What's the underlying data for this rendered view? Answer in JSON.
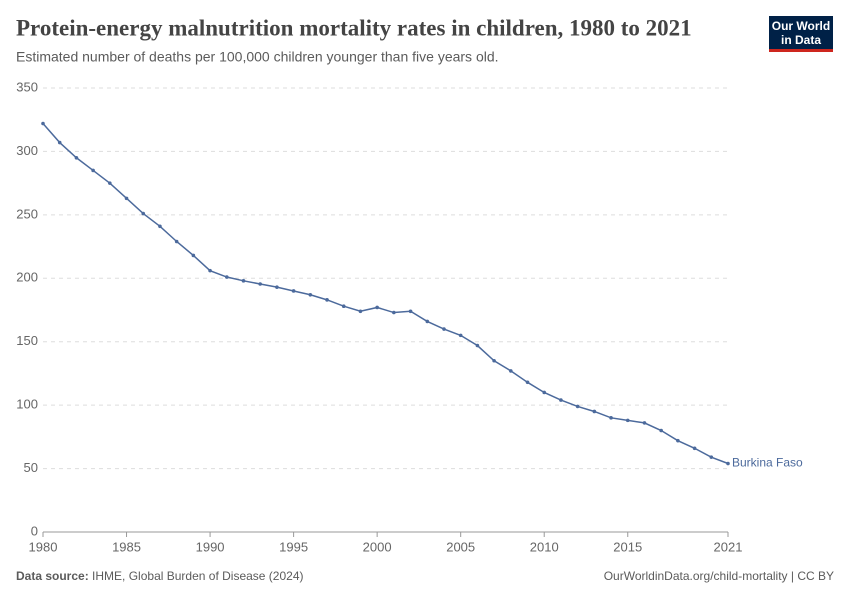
{
  "chart_data": {
    "type": "line",
    "title": "Protein-energy malnutrition mortality rates in children, 1980 to 2021",
    "subtitle": "Estimated number of deaths per 100,000 children younger than five years old.",
    "x": [
      1980,
      1981,
      1982,
      1983,
      1984,
      1985,
      1986,
      1987,
      1988,
      1989,
      1990,
      1991,
      1992,
      1993,
      1994,
      1995,
      1996,
      1997,
      1998,
      1999,
      2000,
      2001,
      2002,
      2003,
      2004,
      2005,
      2006,
      2007,
      2008,
      2009,
      2010,
      2011,
      2012,
      2013,
      2014,
      2015,
      2016,
      2017,
      2018,
      2019,
      2020,
      2021
    ],
    "series": [
      {
        "name": "Burkina Faso",
        "color": "#4c6a9c",
        "values": [
          322,
          307,
          295,
          285,
          275,
          263,
          251,
          241,
          229,
          218,
          206,
          201,
          198,
          195.5,
          193,
          190,
          187,
          183,
          178,
          174,
          177,
          173,
          174,
          166,
          160,
          155,
          147,
          135,
          127,
          118,
          110,
          104,
          99,
          95,
          90,
          88,
          86,
          80,
          72,
          66,
          59,
          54
        ]
      }
    ],
    "xlim": [
      1980,
      2021
    ],
    "xticks": [
      1980,
      1985,
      1990,
      1995,
      2000,
      2005,
      2010,
      2015,
      2021
    ],
    "ylim": [
      0,
      350
    ],
    "yticks": [
      0,
      50,
      100,
      150,
      200,
      250,
      300,
      350
    ],
    "grid": true
  },
  "logo": [
    "Our World",
    "in Data"
  ],
  "source": {
    "label": "Data source:",
    "text": "IHME, Global Burden of Disease (2024)",
    "url": "OurWorldinData.org/child-mortality | CC BY"
  }
}
